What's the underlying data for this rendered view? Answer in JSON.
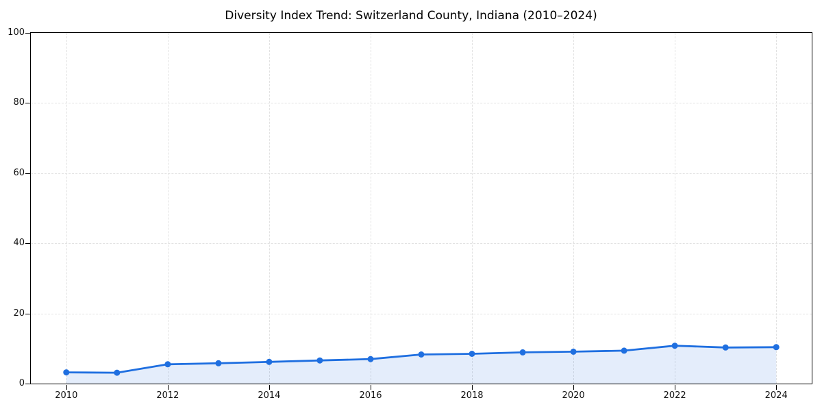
{
  "chart_data": {
    "type": "area",
    "title": "Diversity Index Trend: Switzerland County, Indiana (2010–2024)",
    "xlabel": "",
    "ylabel": "",
    "x": [
      2010,
      2011,
      2012,
      2013,
      2014,
      2015,
      2016,
      2017,
      2018,
      2019,
      2020,
      2021,
      2022,
      2023,
      2024
    ],
    "series": [
      {
        "name": "Diversity Index",
        "values": [
          3.2,
          3.1,
          5.5,
          5.8,
          6.2,
          6.6,
          7.0,
          8.3,
          8.5,
          8.9,
          9.1,
          9.4,
          10.8,
          10.3,
          10.4
        ]
      }
    ],
    "xlim": [
      2009.3,
      2024.7
    ],
    "ylim": [
      0,
      100
    ],
    "x_ticks": [
      2010,
      2012,
      2014,
      2016,
      2018,
      2020,
      2022,
      2024
    ],
    "y_ticks": [
      0,
      20,
      40,
      60,
      80,
      100
    ],
    "grid": true,
    "legend": false,
    "line_color": "#1f6fe0",
    "marker_color": "#1f6fe0",
    "fill_color": "rgba(31, 111, 224, 0.12)",
    "grid_color": "#e2e2e2",
    "axis_color": "#000000",
    "text_color": "#111111"
  }
}
